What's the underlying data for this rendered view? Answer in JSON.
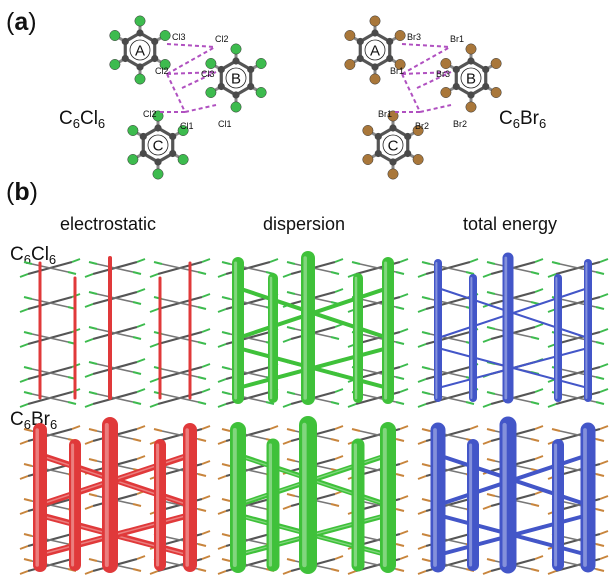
{
  "panel_a": {
    "label_open": "(",
    "label_letter": "a",
    "label_close": ")",
    "molecules": [
      {
        "formula_base": "C",
        "sub1": "6",
        "formula_mid": "Cl",
        "sub2": "6",
        "ring_labels": [
          "A",
          "B",
          "C"
        ],
        "atom_labels": [
          "Cl3",
          "Cl2",
          "Cl2",
          "Cl3",
          "Cl2",
          "Cl1",
          "Cl1"
        ],
        "halogen_color": "#3dbb4e"
      },
      {
        "formula_base": "C",
        "sub1": "6",
        "formula_mid": "Br",
        "sub2": "6",
        "ring_labels": [
          "A",
          "B",
          "C"
        ],
        "atom_labels": [
          "Br3",
          "Br1",
          "Br1",
          "Br3",
          "Br1",
          "Br2",
          "Br2"
        ],
        "halogen_color": "#a9773a"
      }
    ]
  },
  "panel_b": {
    "label_open": "(",
    "label_letter": "b",
    "label_close": ")",
    "columns": [
      "electrostatic",
      "dispersion",
      "total energy"
    ],
    "rows": [
      {
        "formula_base": "C",
        "sub1": "6",
        "formula_mid": "Cl",
        "sub2": "6"
      },
      {
        "formula_base": "C",
        "sub1": "6",
        "formula_mid": "Br",
        "sub2": "6"
      }
    ],
    "colors": {
      "electrostatic": "#e0393a",
      "dispersion": "#3fc13a",
      "total_energy": "#4356c8",
      "carbon": "#444444",
      "chlorine": "#3dbb4e",
      "bromine": "#c8853c"
    }
  }
}
